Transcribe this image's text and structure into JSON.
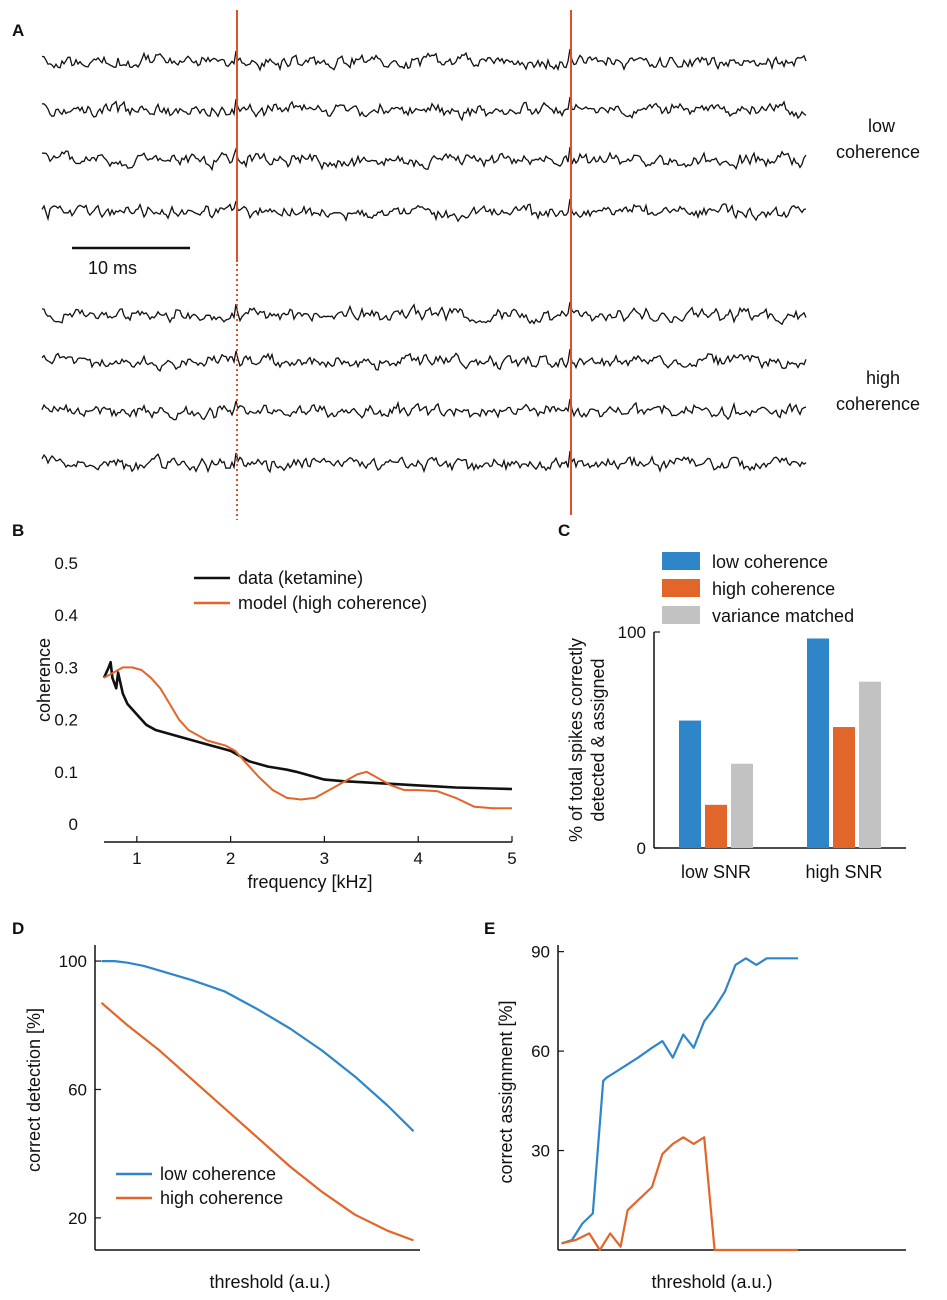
{
  "colors": {
    "blue": "#2e86c9",
    "orange": "#e2662a",
    "gray": "#c2c2c2",
    "black": "#111111",
    "marker": "#e0502a"
  },
  "panels": {
    "a": "A",
    "b": "B",
    "c": "C",
    "d": "D",
    "e": "E"
  },
  "panel_a": {
    "low_label_1": "low",
    "low_label_2": "coherence",
    "high_label_1": "high",
    "high_label_2": "coherence",
    "scale_label": "10 ms"
  },
  "chart_data": [
    {
      "id": "B",
      "type": "line",
      "xlabel": "frequency [kHz]",
      "ylabel": "coherence",
      "xlim": [
        0.65,
        5
      ],
      "ylim": [
        0,
        0.5
      ],
      "xticks": [
        "1",
        "2",
        "3",
        "4",
        "5"
      ],
      "yticks": [
        "0",
        "0.1",
        "0.2",
        "0.3",
        "0.4",
        "0.5"
      ],
      "series": [
        {
          "name": "data (ketamine)",
          "color": "#111111",
          "x": [
            0.65,
            0.7,
            0.72,
            0.74,
            0.78,
            0.8,
            0.85,
            0.9,
            1.0,
            1.1,
            1.2,
            1.3,
            1.4,
            1.5,
            1.6,
            1.7,
            1.8,
            1.9,
            2.0,
            2.1,
            2.2,
            2.3,
            2.4,
            2.5,
            2.6,
            2.7,
            2.8,
            2.9,
            3.0,
            3.2,
            3.4,
            3.6,
            3.8,
            4.0,
            4.2,
            4.4,
            4.6,
            4.8,
            5.0
          ],
          "y": [
            0.28,
            0.3,
            0.31,
            0.28,
            0.26,
            0.29,
            0.25,
            0.23,
            0.21,
            0.19,
            0.18,
            0.175,
            0.17,
            0.165,
            0.16,
            0.155,
            0.15,
            0.145,
            0.14,
            0.13,
            0.12,
            0.115,
            0.11,
            0.107,
            0.104,
            0.1,
            0.095,
            0.09,
            0.085,
            0.082,
            0.08,
            0.078,
            0.076,
            0.074,
            0.072,
            0.07,
            0.069,
            0.068,
            0.067
          ]
        },
        {
          "name": "model (high coherence)",
          "color": "#e2662a",
          "x": [
            0.65,
            0.75,
            0.85,
            0.95,
            1.05,
            1.15,
            1.25,
            1.35,
            1.45,
            1.55,
            1.65,
            1.75,
            1.85,
            1.95,
            2.05,
            2.15,
            2.3,
            2.45,
            2.6,
            2.75,
            2.9,
            3.05,
            3.2,
            3.35,
            3.45,
            3.55,
            3.7,
            3.85,
            4.0,
            4.2,
            4.4,
            4.6,
            4.8,
            5.0
          ],
          "y": [
            0.28,
            0.29,
            0.3,
            0.3,
            0.295,
            0.28,
            0.26,
            0.23,
            0.2,
            0.18,
            0.17,
            0.16,
            0.155,
            0.15,
            0.14,
            0.12,
            0.09,
            0.065,
            0.05,
            0.047,
            0.05,
            0.065,
            0.08,
            0.095,
            0.1,
            0.09,
            0.075,
            0.065,
            0.065,
            0.063,
            0.05,
            0.033,
            0.03,
            0.03
          ]
        }
      ]
    },
    {
      "id": "C",
      "type": "bar",
      "ylabel_1": "% of total spikes correctly",
      "ylabel_2": "detected & assigned",
      "ylim": [
        0,
        100
      ],
      "yticks": [
        "0",
        "100"
      ],
      "categories": [
        "low SNR",
        "high SNR"
      ],
      "series": [
        {
          "name": "low coherence",
          "color": "#2e86c9",
          "values": [
            59,
            97
          ]
        },
        {
          "name": "high coherence",
          "color": "#e2662a",
          "values": [
            20,
            56
          ]
        },
        {
          "name": "variance matched",
          "color": "#c2c2c2",
          "values": [
            39,
            77
          ]
        }
      ]
    },
    {
      "id": "D",
      "type": "line",
      "xlabel": "threshold (a.u.)",
      "ylabel": "correct detection  [%]",
      "xlim": [
        0,
        1
      ],
      "ylim": [
        10,
        105
      ],
      "yticks": [
        "20",
        "60",
        "100"
      ],
      "series": [
        {
          "name": "low coherence",
          "color": "#2e86c9",
          "x": [
            0.02,
            0.06,
            0.1,
            0.15,
            0.2,
            0.3,
            0.4,
            0.5,
            0.6,
            0.7,
            0.8,
            0.9,
            0.98
          ],
          "y": [
            100,
            100,
            99.5,
            98.5,
            97,
            94,
            90.5,
            85,
            79,
            72,
            64,
            55,
            47
          ]
        },
        {
          "name": "high coherence",
          "color": "#e2662a",
          "x": [
            0.02,
            0.1,
            0.2,
            0.3,
            0.4,
            0.5,
            0.6,
            0.7,
            0.8,
            0.9,
            0.98
          ],
          "y": [
            87,
            80,
            72,
            63,
            54,
            45,
            36,
            28,
            21,
            16,
            13
          ]
        }
      ]
    },
    {
      "id": "E",
      "type": "line",
      "xlabel": "threshold (a.u.)",
      "ylabel": "correct assignment [%]",
      "xlim": [
        0,
        1
      ],
      "ylim": [
        0,
        92
      ],
      "yticks": [
        "30",
        "60",
        "90"
      ],
      "series": [
        {
          "name": "low coherence",
          "color": "#2e86c9",
          "x": [
            0.01,
            0.04,
            0.07,
            0.1,
            0.13,
            0.14,
            0.17,
            0.2,
            0.23,
            0.27,
            0.3,
            0.33,
            0.36,
            0.39,
            0.42,
            0.45,
            0.48,
            0.51,
            0.54,
            0.57,
            0.6,
            0.63,
            0.66,
            0.69
          ],
          "y": [
            2,
            3,
            8,
            11,
            51,
            52,
            54,
            56,
            58,
            61,
            63,
            58,
            65,
            61,
            69,
            73,
            78,
            86,
            88,
            86,
            88,
            88,
            88,
            88
          ]
        },
        {
          "name": "high coherence",
          "color": "#e2662a",
          "x": [
            0.01,
            0.05,
            0.09,
            0.12,
            0.15,
            0.18,
            0.2,
            0.23,
            0.27,
            0.3,
            0.33,
            0.36,
            0.39,
            0.42,
            0.45,
            0.48,
            0.5,
            0.55,
            0.6,
            0.65,
            0.69
          ],
          "y": [
            2,
            3,
            5,
            0,
            5,
            1,
            12,
            15,
            19,
            29,
            32,
            34,
            32,
            34,
            0,
            0,
            0,
            0,
            0,
            0,
            0
          ]
        }
      ]
    }
  ]
}
